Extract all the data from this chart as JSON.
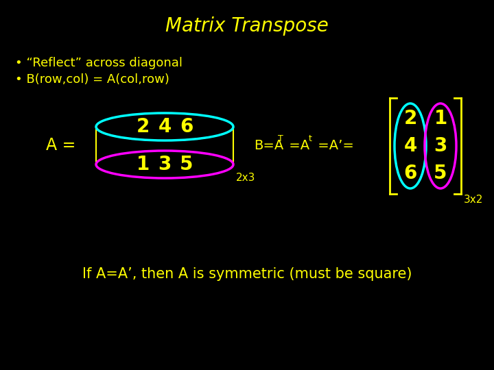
{
  "title": "Matrix Transpose",
  "title_color": "#FFFF00",
  "bg_color": "#000000",
  "text_color": "#FFFF00",
  "bullet1": "• “Reflect” across diagonal",
  "bullet2": "• B(row,col) = A(col,row)",
  "matrix_A_label": "A = ",
  "matrix_A_row1": [
    "2",
    "4",
    "6"
  ],
  "matrix_A_row2": [
    "1",
    "3",
    "5"
  ],
  "dim_A": "2x3",
  "matrix_B_col1": [
    "2",
    "4",
    "6"
  ],
  "matrix_B_col2": [
    "1",
    "3",
    "5"
  ],
  "dim_B": "3x2",
  "bottom_text": "If A=A’, then A is symmetric (must be square)",
  "cyan": "#00FFFF",
  "magenta": "#FF00FF",
  "yellow": "#FFFF00"
}
